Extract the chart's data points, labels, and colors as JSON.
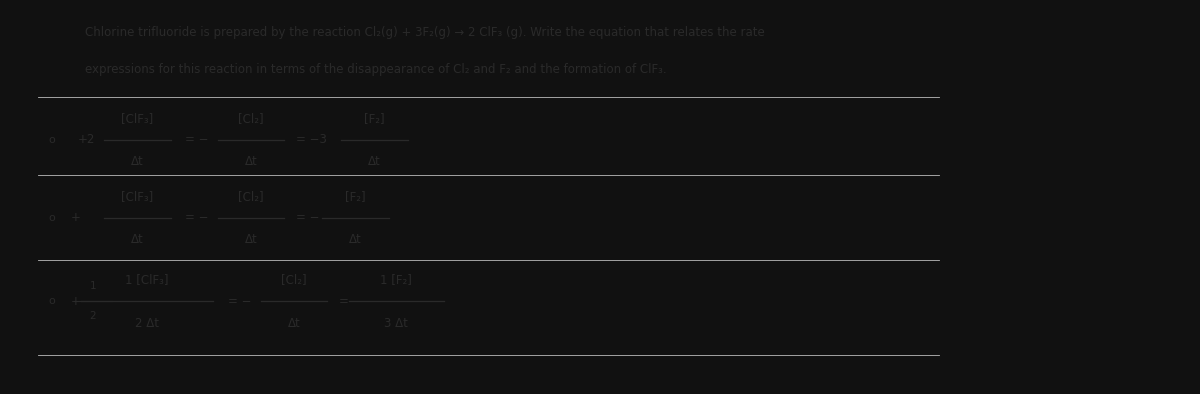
{
  "bg_color": "#e8e6e3",
  "panel_color": "#f2f1ef",
  "right_bg": "#111111",
  "text_color": "#2a2a2a",
  "title_line1": "Chlorine trifluoride is prepared by the reaction Cl₂(g) + 3F₂(g) → 2 ClF₃ (g). Write the equation that relates the rate",
  "title_line2": "expressions for this reaction in terms of the disappearance of Cl₂ and F₂ and the formation of ClF₃.",
  "sep_color": "#bbbbbb",
  "opt1_prefix": "+2",
  "opt1_n1": "[ClF₃]",
  "opt1_d1": "Δt",
  "opt1_eq1": "= −",
  "opt1_n2": "[Cl₂]",
  "opt1_d2": "Δt",
  "opt1_eq2": "= −3",
  "opt1_n3": "[F₂]",
  "opt1_d3": "Δt",
  "opt2_prefix": "+",
  "opt2_n1": "[ClF₃]",
  "opt2_d1": "Δt",
  "opt2_eq1": "= −",
  "opt2_n2": "[Cl₂]",
  "opt2_d2": "Δt",
  "opt2_eq2": "= −",
  "opt2_n3": "[F₂]",
  "opt2_d3": "Δt",
  "opt3_prefix": "+",
  "opt3_coef1n": "1",
  "opt3_coef1d": "2",
  "opt3_n1": "[ClF₃]",
  "opt3_d1": "Δt",
  "opt3_eq1": "= −",
  "opt3_n2": "[Cl₂]",
  "opt3_d2": "Δt",
  "opt3_eq2": "= −",
  "opt3_coef2n": "1",
  "opt3_coef2d": "3",
  "opt3_n3": "[F₂]",
  "opt3_d3": "Δt",
  "figw": 12.0,
  "figh": 3.94,
  "dpi": 100
}
